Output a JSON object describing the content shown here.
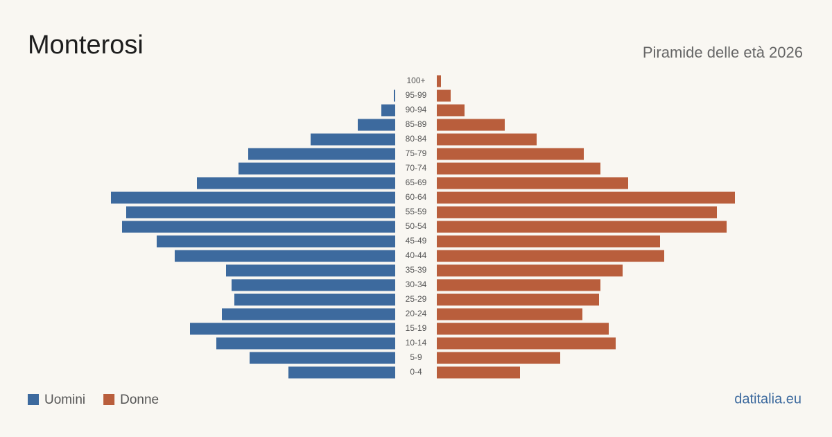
{
  "chart_data": {
    "type": "pyramid",
    "title": "Monterosi",
    "subtitle": "Piramide delle età 2026",
    "source": "datitalia.eu",
    "categories": [
      "100+",
      "95-99",
      "90-94",
      "85-89",
      "80-84",
      "75-79",
      "70-74",
      "65-69",
      "60-64",
      "55-59",
      "50-54",
      "45-49",
      "40-44",
      "35-39",
      "30-34",
      "25-29",
      "20-24",
      "15-19",
      "10-14",
      "5-9",
      "0-4"
    ],
    "series": [
      {
        "name": "Uomini",
        "color": "#3d6a9e",
        "values": [
          0,
          1,
          10,
          27,
          61,
          106,
          113,
          143,
          205,
          194,
          197,
          172,
          159,
          122,
          118,
          116,
          125,
          148,
          129,
          105,
          77
        ]
      },
      {
        "name": "Donne",
        "color": "#b95e3c",
        "values": [
          3,
          10,
          20,
          49,
          72,
          106,
          118,
          138,
          215,
          202,
          209,
          161,
          164,
          134,
          118,
          117,
          105,
          124,
          129,
          89,
          60
        ]
      }
    ]
  }
}
